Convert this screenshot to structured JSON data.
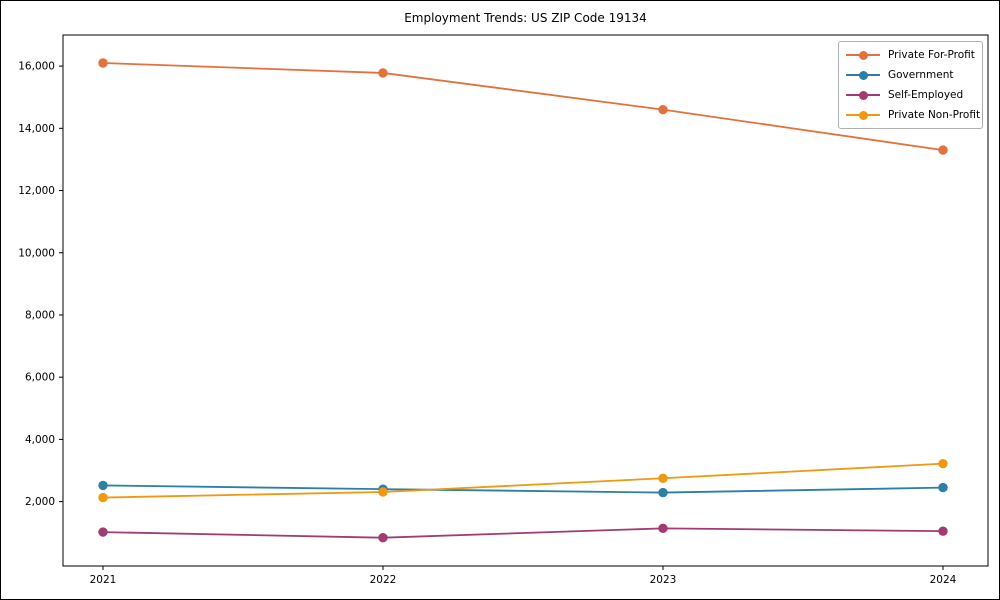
{
  "chart_data": {
    "type": "line",
    "title": "Employment Trends: US ZIP Code 19134",
    "x": [
      2021,
      2022,
      2023,
      2024
    ],
    "x_tick_labels": [
      "2021",
      "2022",
      "2023",
      "2024"
    ],
    "y_ticks": [
      2000,
      4000,
      6000,
      8000,
      10000,
      12000,
      14000,
      16000
    ],
    "y_tick_labels": [
      "2,000",
      "4,000",
      "6,000",
      "8,000",
      "10,000",
      "12,000",
      "14,000",
      "16,000"
    ],
    "ylim": [
      -70,
      17000
    ],
    "grid": false,
    "legend_position": "upper right",
    "xlabel": "",
    "ylabel": "",
    "series": [
      {
        "name": "Private For-Profit",
        "color": "#E2713E",
        "values": [
          16100,
          15780,
          14600,
          13300
        ]
      },
      {
        "name": "Government",
        "color": "#2B80A3",
        "values": [
          2520,
          2400,
          2290,
          2450
        ]
      },
      {
        "name": "Self-Employed",
        "color": "#A23B72",
        "values": [
          1020,
          840,
          1140,
          1050
        ]
      },
      {
        "name": "Private Non-Profit",
        "color": "#F0980F",
        "values": [
          2130,
          2310,
          2750,
          3220
        ]
      }
    ]
  }
}
